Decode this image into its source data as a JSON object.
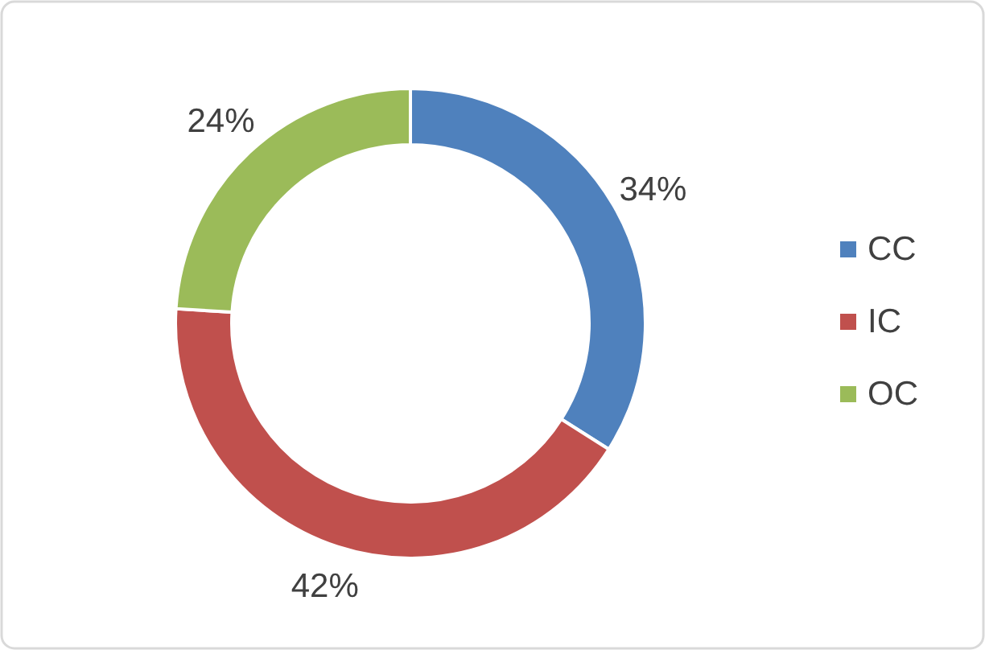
{
  "chart_data": {
    "type": "donut",
    "categories": [
      "CC",
      "IC",
      "OC"
    ],
    "values": [
      34,
      42,
      24
    ],
    "colors": [
      "#4f81bd",
      "#c0504d",
      "#9bbb59"
    ],
    "value_labels": [
      "34%",
      "42%",
      "24%"
    ],
    "legend": "right"
  }
}
